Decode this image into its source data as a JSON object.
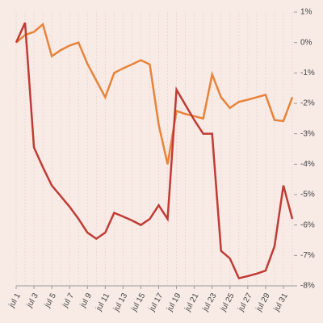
{
  "chart_data": {
    "type": "line",
    "categories": [
      "jul 1",
      null,
      "jul 3",
      null,
      "jul 5",
      null,
      "jul 7",
      null,
      "jul 9",
      null,
      "jul 11",
      null,
      "jul 13",
      null,
      "jul 15",
      null,
      "jul 17",
      null,
      "jul 19",
      null,
      "jul 21",
      null,
      "jul 23",
      null,
      "jul 25",
      null,
      "jul 27",
      null,
      "jul 29",
      null,
      "jul 31",
      null
    ],
    "series": [
      {
        "color": "#e8833a",
        "values": [
          0,
          0.25,
          0.35,
          0.6,
          -0.45,
          -0.25,
          -0.1,
          0,
          -0.7,
          -1.25,
          -1.8,
          -1.0,
          -0.85,
          -0.72,
          -0.58,
          -0.72,
          -2.7,
          -4.0,
          -2.25,
          -2.35,
          -2.42,
          -2.5,
          -1.05,
          -1.8,
          -2.15,
          -1.95,
          -1.88,
          -1.8,
          -1.72,
          -2.55,
          -2.58,
          -1.8
        ]
      },
      {
        "color": "#c03b35",
        "values": [
          0,
          0.65,
          -3.45,
          -4.1,
          -4.7,
          -5.05,
          -5.4,
          -5.8,
          -6.25,
          -6.45,
          -6.25,
          -5.6,
          -5.72,
          -5.85,
          -6.0,
          -5.8,
          -5.35,
          -5.8,
          -1.55,
          -2.05,
          -2.55,
          -3.0,
          -3.0,
          -6.85,
          -7.1,
          -7.75,
          -7.68,
          -7.6,
          -7.5,
          -6.7,
          -4.7,
          -5.8
        ]
      }
    ],
    "ylim": [
      -8,
      1
    ],
    "yticks": [
      {
        "value": 1,
        "label": "1%"
      },
      {
        "value": 0,
        "label": "0%"
      },
      {
        "value": -1,
        "label": "-1%"
      },
      {
        "value": -2,
        "label": "-2%"
      },
      {
        "value": -3,
        "label": "-3%"
      },
      {
        "value": -4,
        "label": "-4%"
      },
      {
        "value": -5,
        "label": "-5%"
      },
      {
        "value": -6,
        "label": "-6%"
      },
      {
        "value": -7,
        "label": "-7%"
      },
      {
        "value": -8,
        "label": "-8%"
      }
    ],
    "grid": true
  }
}
